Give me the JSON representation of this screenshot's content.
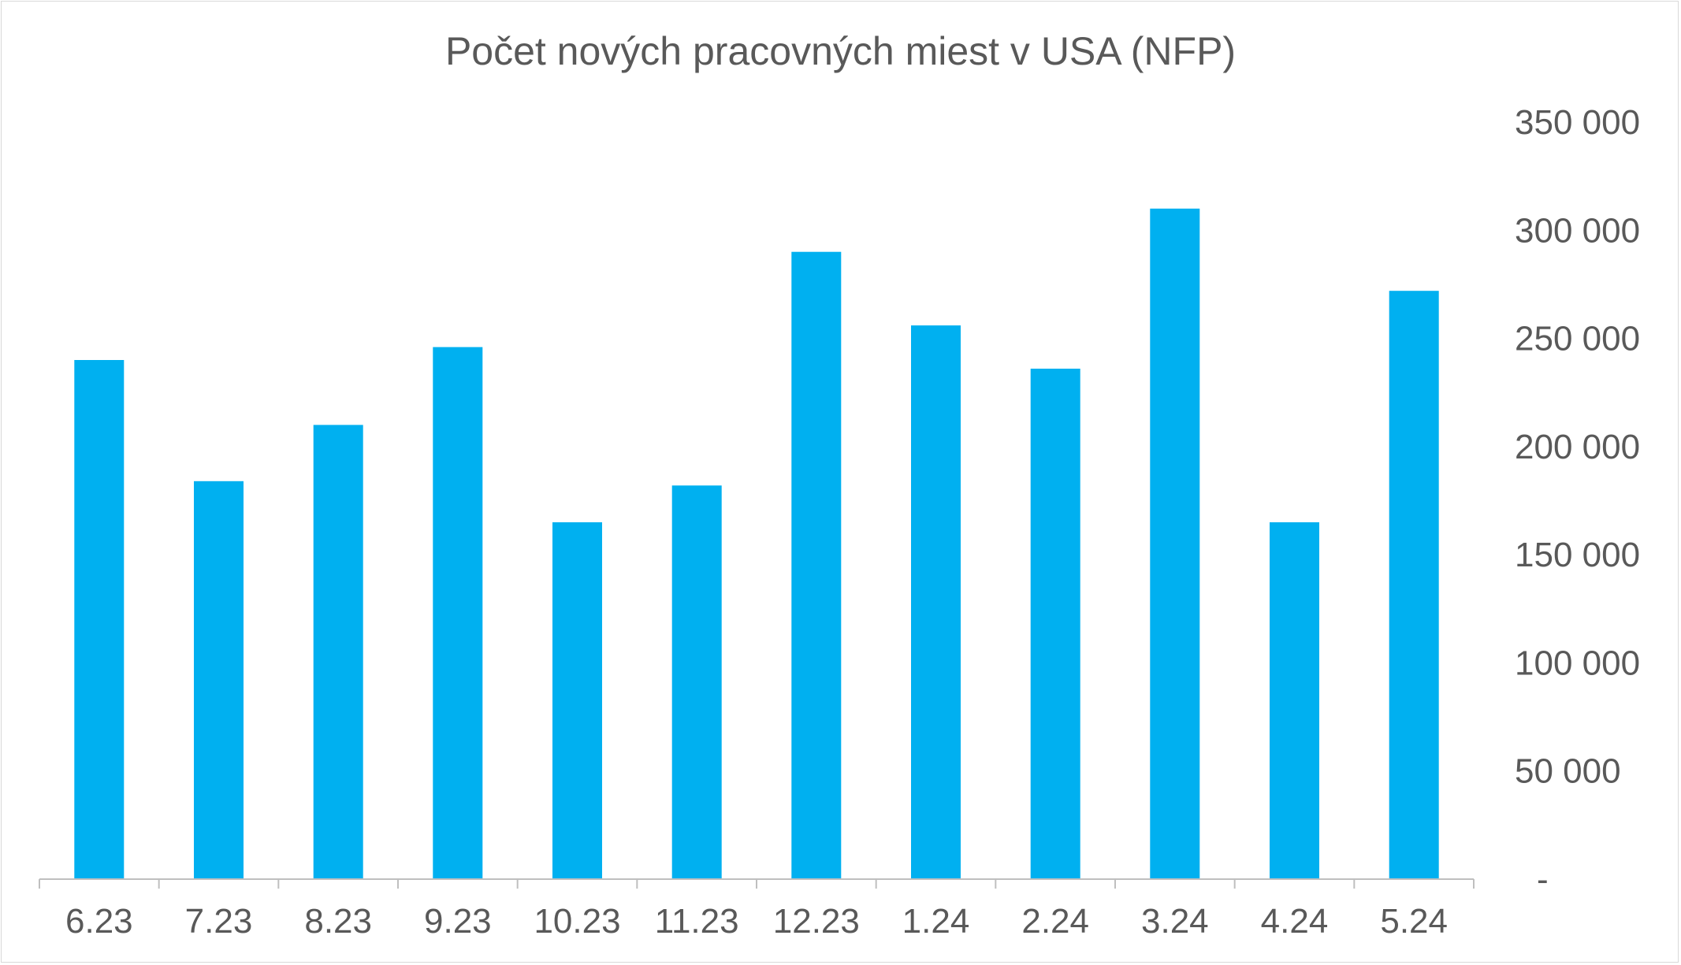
{
  "chart_data": {
    "type": "bar",
    "title": "Počet nových pracovných miest v USA (NFP)",
    "xlabel": "",
    "ylabel": "",
    "categories": [
      "6.23",
      "7.23",
      "8.23",
      "9.23",
      "10.23",
      "11.23",
      "12.23",
      "1.24",
      "2.24",
      "3.24",
      "4.24",
      "5.24"
    ],
    "values": [
      240000,
      184000,
      210000,
      246000,
      165000,
      182000,
      290000,
      256000,
      236000,
      310000,
      165000,
      272000
    ],
    "ylim": [
      0,
      350000
    ],
    "y_ticks": [
      0,
      50000,
      100000,
      150000,
      200000,
      250000,
      300000,
      350000
    ],
    "y_tick_labels": [
      "-",
      "50 000",
      "100 000",
      "150 000",
      "200 000",
      "250 000",
      "300 000",
      "350 000"
    ],
    "y_axis_side": "right",
    "grid": false,
    "legend": "none",
    "bar_color": "#00b0f0",
    "axis_color": "#bfbfbf",
    "text_color": "#595959"
  }
}
